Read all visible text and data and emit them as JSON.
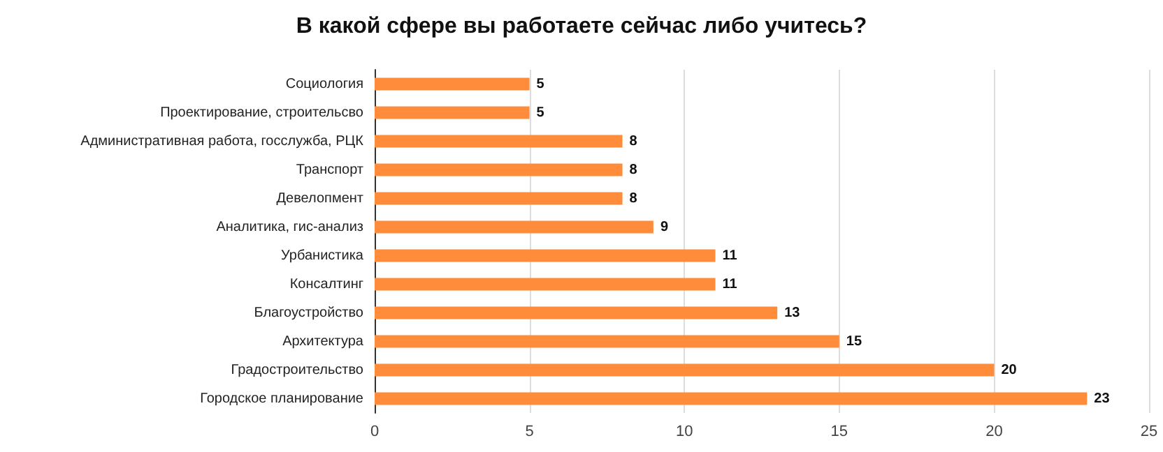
{
  "chart_data": {
    "type": "bar",
    "orientation": "horizontal",
    "title": "В какой сфере вы работаете сейчас либо учитесь?",
    "categories": [
      "Социология",
      "Проектирование, строительсво",
      "Административная работа, госслужба, РЦК",
      "Транспорт",
      "Девелопмент",
      "Аналитика, гис-анализ",
      "Урбанистика",
      "Консалтинг",
      "Благоустройство",
      "Архитектура",
      "Градостроительство",
      "Городское планирование"
    ],
    "values": [
      5,
      5,
      8,
      8,
      8,
      9,
      11,
      11,
      13,
      15,
      20,
      23
    ],
    "color": "#ff8c3a",
    "xlim": [
      0,
      25
    ],
    "xticks": [
      0,
      5,
      10,
      15,
      20,
      25
    ],
    "grid": "x",
    "data_labels": true
  }
}
